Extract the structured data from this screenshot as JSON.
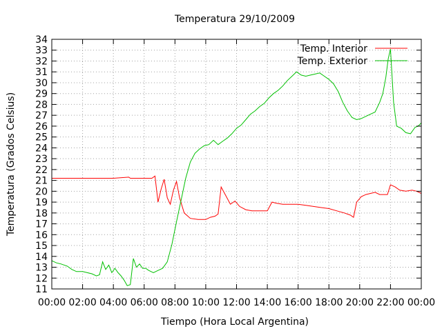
{
  "chart_data": {
    "type": "line",
    "title": "Temperatura 29/10/2009",
    "xlabel": "Tiempo (Hora Local Argentina)",
    "ylabel": "Temperatura (Grados Celsius)",
    "xlim": [
      0,
      24
    ],
    "ylim": [
      11,
      34
    ],
    "x_tick_labels": [
      "00:00",
      "02:00",
      "04:00",
      "06:00",
      "08:00",
      "10:00",
      "12:00",
      "14:00",
      "16:00",
      "18:00",
      "20:00",
      "22:00",
      "00:00"
    ],
    "y_ticks": [
      11,
      12,
      13,
      14,
      15,
      16,
      17,
      18,
      19,
      20,
      21,
      22,
      23,
      24,
      25,
      26,
      27,
      28,
      29,
      30,
      31,
      32,
      33,
      34
    ],
    "grid": true,
    "legend_position": "top-right",
    "series": [
      {
        "name": "Temp. Interior",
        "color": "#ff0000",
        "x": [
          0,
          2,
          4,
          5,
          5.1,
          6.5,
          6.7,
          6.9,
          7.1,
          7.3,
          7.5,
          7.7,
          7.9,
          8.1,
          8.3,
          8.6,
          9.0,
          9.5,
          10.0,
          10.3,
          10.6,
          10.8,
          11.0,
          11.3,
          11.6,
          11.9,
          12.2,
          12.6,
          13.0,
          13.5,
          14.0,
          14.3,
          14.6,
          15.0,
          15.5,
          16.0,
          16.5,
          17.0,
          17.5,
          18.0,
          18.5,
          19.0,
          19.4,
          19.6,
          19.8,
          20.1,
          20.4,
          20.7,
          21.0,
          21.3,
          21.6,
          21.8,
          22.0,
          22.3,
          22.6,
          23.0,
          23.4,
          23.7,
          24.0
        ],
        "y": [
          21.2,
          21.2,
          21.2,
          21.3,
          21.2,
          21.2,
          21.4,
          19.0,
          20.2,
          21.1,
          19.4,
          18.8,
          20.1,
          20.9,
          19.4,
          18.0,
          17.5,
          17.4,
          17.4,
          17.6,
          17.7,
          17.9,
          20.4,
          19.6,
          18.8,
          19.1,
          18.6,
          18.3,
          18.2,
          18.2,
          18.2,
          19.0,
          18.9,
          18.8,
          18.8,
          18.8,
          18.7,
          18.6,
          18.5,
          18.4,
          18.2,
          18.0,
          17.8,
          17.6,
          19.0,
          19.5,
          19.7,
          19.8,
          19.9,
          19.7,
          19.7,
          19.7,
          20.6,
          20.4,
          20.1,
          20.0,
          20.1,
          20.0,
          19.8
        ]
      },
      {
        "name": "Temp. Exterior",
        "color": "#00c000",
        "x": [
          0,
          0.3,
          0.6,
          1.0,
          1.3,
          1.6,
          2.0,
          2.3,
          2.6,
          2.9,
          3.1,
          3.3,
          3.5,
          3.7,
          3.9,
          4.1,
          4.3,
          4.5,
          4.7,
          4.9,
          5.1,
          5.3,
          5.5,
          5.7,
          5.9,
          6.1,
          6.3,
          6.6,
          6.9,
          7.2,
          7.5,
          7.8,
          8.1,
          8.4,
          8.7,
          9.0,
          9.3,
          9.6,
          9.9,
          10.2,
          10.5,
          10.8,
          11.1,
          11.4,
          11.7,
          12.0,
          12.3,
          12.6,
          12.9,
          13.2,
          13.5,
          13.8,
          14.1,
          14.4,
          14.7,
          15.0,
          15.3,
          15.6,
          15.9,
          16.2,
          16.5,
          16.8,
          17.1,
          17.4,
          17.7,
          18.0,
          18.3,
          18.6,
          18.9,
          19.2,
          19.5,
          19.8,
          20.1,
          20.4,
          20.7,
          21.0,
          21.3,
          21.5,
          21.7,
          21.85,
          22.0,
          22.2,
          22.4,
          22.7,
          23.0,
          23.3,
          23.6,
          23.8,
          24.0
        ],
        "y": [
          13.6,
          13.4,
          13.3,
          13.1,
          12.8,
          12.6,
          12.6,
          12.5,
          12.4,
          12.2,
          12.3,
          13.5,
          12.8,
          13.2,
          12.5,
          12.9,
          12.5,
          12.2,
          11.8,
          11.3,
          11.4,
          13.8,
          13.0,
          13.3,
          12.9,
          12.9,
          12.7,
          12.5,
          12.7,
          12.9,
          13.5,
          15.1,
          17.2,
          19.2,
          21.2,
          22.7,
          23.5,
          23.9,
          24.2,
          24.3,
          24.7,
          24.3,
          24.6,
          24.9,
          25.3,
          25.8,
          26.1,
          26.6,
          27.1,
          27.4,
          27.8,
          28.1,
          28.6,
          29.0,
          29.3,
          29.7,
          30.2,
          30.6,
          31.0,
          30.7,
          30.6,
          30.7,
          30.8,
          30.9,
          30.6,
          30.3,
          29.9,
          29.2,
          28.2,
          27.4,
          26.8,
          26.6,
          26.7,
          26.9,
          27.1,
          27.3,
          28.2,
          29.0,
          30.5,
          32.2,
          33.1,
          28.2,
          26.0,
          25.8,
          25.4,
          25.3,
          25.9,
          26.0,
          26.3
        ]
      }
    ]
  }
}
